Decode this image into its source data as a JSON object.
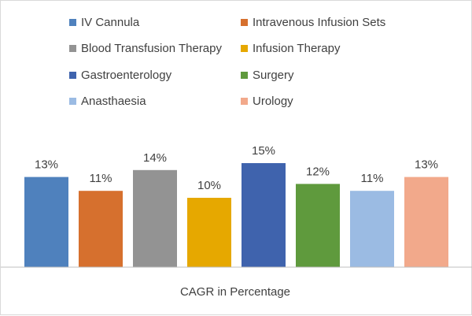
{
  "chart_data": {
    "type": "bar",
    "title": "",
    "xlabel": "CAGR in Percentage",
    "ylabel": "",
    "ylim": [
      0,
      16
    ],
    "grid": false,
    "legend_position": "top",
    "series": [
      {
        "name": "IV Cannula",
        "value": 13,
        "label": "13%",
        "color": "#4f81bd"
      },
      {
        "name": "Intravenous Infusion Sets",
        "value": 11,
        "label": "11%",
        "color": "#d6702e"
      },
      {
        "name": "Blood Transfusion Therapy",
        "value": 14,
        "label": "14%",
        "color": "#939393"
      },
      {
        "name": "Infusion Therapy",
        "value": 10,
        "label": "10%",
        "color": "#e6a800"
      },
      {
        "name": "Gastroenterology",
        "value": 15,
        "label": "15%",
        "color": "#3f63ad"
      },
      {
        "name": "Surgery",
        "value": 12,
        "label": "12%",
        "color": "#5f9a3d"
      },
      {
        "name": "Anasthaesia",
        "value": 11,
        "label": "11%",
        "color": "#9bbbe3"
      },
      {
        "name": "Urology",
        "value": 13,
        "label": "13%",
        "color": "#f2a98b"
      }
    ]
  }
}
